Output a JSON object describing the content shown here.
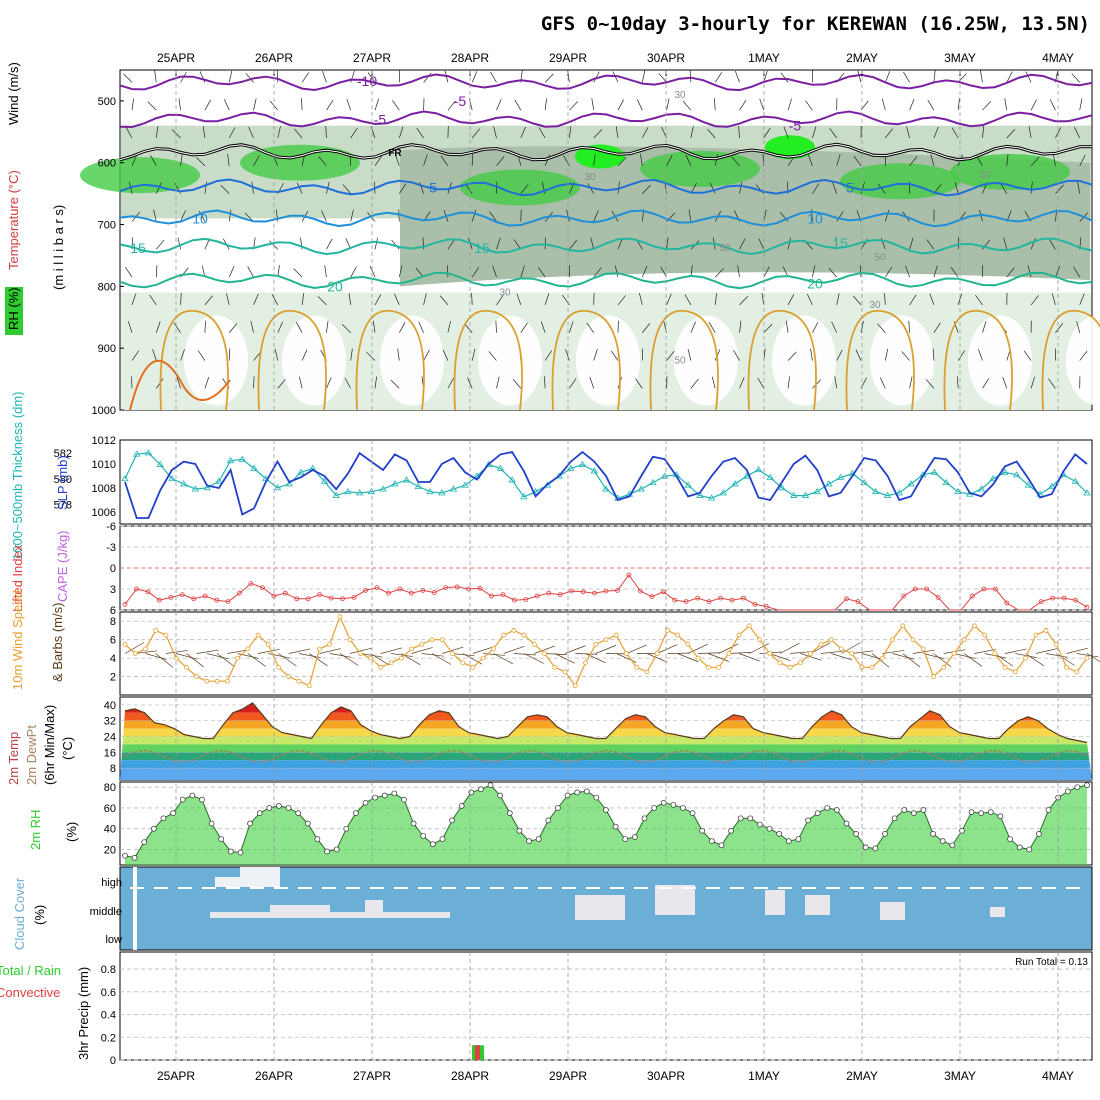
{
  "title": "GFS 0~10day 3-hourly for KEREWAN (16.25W, 13.5N)",
  "colors": {
    "slp": "#1f3fcc",
    "thickness": "#20b5b5",
    "lifted": "#e04040",
    "wind": "#e8a030",
    "rh": "#2ecc2e",
    "cloud": "#6baed6",
    "frz": "#000000",
    "t_cold": "#7a1fa2",
    "t_mid": "#1e6fd9",
    "t_warm": "#22b5a0"
  },
  "chart_data": {
    "type": "meteogram",
    "x_dates": [
      "25APR",
      "26APR",
      "27APR",
      "28APR",
      "29APR",
      "30APR",
      "1MAY",
      "2MAY",
      "3MAY",
      "4MAY"
    ],
    "upper": {
      "ylabels": [
        "RH (%)",
        "Temperature (°C)",
        "Wind (m/s)",
        "(m i l l i b a r s)"
      ],
      "yticks": [
        "500",
        "600",
        "700",
        "800",
        "900",
        "1000"
      ],
      "temp_contour_labels": [
        "-10",
        "-5",
        "-5",
        "-5",
        "5",
        "5",
        "10",
        "10",
        "15",
        "15",
        "15",
        "20",
        "20"
      ],
      "freezing_label": "FR",
      "rh_labels": [
        "30",
        "50",
        "30",
        "50",
        "30",
        "50",
        "30",
        "30"
      ]
    },
    "slp_panel": {
      "ylabels": [
        "1000~500mb Thickness (dm)",
        "SLP (mb)"
      ],
      "left_ticks": [
        "582",
        "580",
        "578"
      ],
      "right_ticks": [
        "1012",
        "1010",
        "1008",
        "1006"
      ],
      "slp": [
        1008.5,
        1005.5,
        1005.5,
        1007.8,
        1009.5,
        1010.2,
        1010.0,
        1008.2,
        1008.0,
        1009.5,
        1005.8,
        1006.3,
        1008.5,
        1010.2,
        1008.5,
        1008.9,
        1009.5,
        1009.0,
        1007.9,
        1009.2,
        1010.9,
        1010.2,
        1009.5,
        1010.8,
        1010.3,
        1008.5,
        1008.5,
        1010.0,
        1010.5,
        1009.3,
        1008.7,
        1010.0,
        1010.8,
        1011.0,
        1009.4,
        1007.3,
        1008.3,
        1009.0,
        1010.2,
        1011.0,
        1010.2,
        1009.0,
        1007.0,
        1007.3,
        1009.0,
        1010.6,
        1010.4,
        1009.0,
        1007.3,
        1007.6,
        1009.0,
        1010.2,
        1010.5,
        1009.5,
        1007.2,
        1007.0,
        1008.5,
        1010.0,
        1010.7,
        1009.5,
        1007.3,
        1007.6,
        1009.0,
        1010.5,
        1010.3,
        1009.0,
        1007.0,
        1007.3,
        1009.0,
        1010.5,
        1010.4,
        1009.3,
        1007.6,
        1007.3,
        1008.3,
        1009.8,
        1010.2,
        1008.8,
        1007.2,
        1007.5,
        1009.4,
        1010.8,
        1010.0
      ],
      "thickness": [
        580.0,
        581.9,
        582.0,
        581.1,
        580.0,
        579.6,
        579.2,
        579.3,
        579.8,
        581.4,
        581.5,
        580.8,
        580.0,
        579.3,
        579.6,
        580.5,
        580.8,
        579.8,
        578.7,
        579.0,
        578.9,
        579.0,
        579.2,
        579.6,
        579.9,
        579.4,
        579.0,
        578.9,
        579.2,
        579.5,
        580.2,
        581.1,
        580.8,
        579.9,
        578.6,
        579.0,
        579.5,
        580.2,
        580.8,
        581.1,
        580.6,
        579.2,
        578.5,
        578.8,
        579.2,
        579.7,
        580.2,
        580.3,
        579.5,
        578.7,
        578.5,
        578.9,
        579.6,
        580.2,
        580.7,
        580.1,
        579.3,
        578.7,
        578.7,
        579.0,
        579.6,
        580.1,
        580.4,
        579.7,
        579.0,
        578.7,
        578.9,
        579.6,
        580.3,
        580.5,
        579.7,
        579.0,
        578.8,
        579.2,
        580.0,
        580.5,
        580.3,
        579.5,
        578.8,
        579.4,
        580.3,
        579.8,
        578.9
      ]
    },
    "cape_panel": {
      "ylabels": [
        "Lifted Index",
        "CAPE (J/kg)"
      ],
      "yticks": [
        "-6",
        "-3",
        "0",
        "3",
        "6"
      ],
      "lifted_index": [
        5.2,
        3.0,
        3.4,
        4.6,
        4.2,
        3.8,
        4.4,
        4.0,
        4.6,
        4.8,
        3.6,
        2.2,
        2.8,
        4.0,
        3.6,
        4.4,
        4.4,
        3.8,
        4.3,
        4.4,
        4.2,
        3.2,
        2.8,
        3.6,
        3.0,
        3.6,
        3.2,
        3.5,
        2.8,
        2.7,
        3.0,
        2.9,
        4.0,
        3.8,
        4.6,
        4.5,
        4.0,
        3.6,
        3.8,
        3.3,
        3.4,
        3.6,
        3.3,
        3.2,
        1.0,
        3.3,
        4.1,
        3.4,
        4.6,
        4.8,
        4.3,
        4.8,
        4.3,
        4.6,
        4.3,
        5.2,
        5.5,
        6.0,
        6.0,
        6.0,
        6.0,
        6.0,
        6.0,
        4.4,
        4.8,
        6.0,
        6.0,
        6.0,
        4.0,
        3.0,
        3.0,
        4.2,
        6.0,
        6.0,
        4.0,
        3.0,
        3.0,
        5.0,
        6.0,
        6.0,
        4.8,
        4.3,
        4.3,
        4.6,
        5.6
      ]
    },
    "wind_panel": {
      "ylabels": [
        "10m Wind Speed",
        "& Barbs (m/s)"
      ],
      "yticks": [
        "8",
        "6",
        "4",
        "2"
      ],
      "speed": [
        5.5,
        4.5,
        5.0,
        7.0,
        6.5,
        4.0,
        3.0,
        2.0,
        1.5,
        1.5,
        1.5,
        4.0,
        5.0,
        6.5,
        5.5,
        3.0,
        2.0,
        1.5,
        1.0,
        5.0,
        5.5,
        8.5,
        6.0,
        4.5,
        4.0,
        3.0,
        3.5,
        4.0,
        5.0,
        5.5,
        6.0,
        6.0,
        4.5,
        3.5,
        3.0,
        4.0,
        5.0,
        6.5,
        7.0,
        6.5,
        5.5,
        4.5,
        3.0,
        2.5,
        1.0,
        3.5,
        5.5,
        6.0,
        6.5,
        4.5,
        3.0,
        2.5,
        4.5,
        7.0,
        6.5,
        5.5,
        4.0,
        3.0,
        3.0,
        4.5,
        6.5,
        7.5,
        6.0,
        4.5,
        3.5,
        3.0,
        3.5,
        4.5,
        5.5,
        6.0,
        5.0,
        4.5,
        3.0,
        3.0,
        4.0,
        6.0,
        7.5,
        6.0,
        5.0,
        2.0,
        3.0,
        4.5,
        6.0,
        7.5,
        6.5,
        4.5,
        3.0,
        2.5,
        4.0,
        6.5,
        7.0,
        5.5,
        3.0,
        2.5,
        4.0
      ]
    },
    "temp_panel": {
      "ylabels": [
        "2m Temp",
        "2m DewPt",
        "(6hr Min/Max)",
        "(°C)"
      ],
      "yticks": [
        "40",
        "32",
        "24",
        "16",
        "8"
      ],
      "temp": [
        37,
        38,
        36,
        31,
        30,
        28,
        25,
        24,
        23,
        23,
        30,
        36,
        38,
        41,
        35,
        29,
        26,
        25,
        24,
        23,
        30,
        36,
        39,
        37,
        30,
        27,
        25,
        24,
        23,
        24,
        30,
        35,
        37,
        36,
        29,
        26,
        25,
        24,
        23,
        24,
        29,
        34,
        35,
        34,
        29,
        26,
        25,
        24,
        23,
        23,
        28,
        33,
        35,
        34,
        29,
        26,
        25,
        24,
        23,
        23,
        28,
        32,
        35,
        34,
        28,
        26,
        25,
        24,
        23,
        23,
        29,
        34,
        37,
        35,
        29,
        26,
        25,
        24,
        23,
        23,
        29,
        33,
        37,
        35,
        29,
        26,
        25,
        24,
        23,
        23,
        28,
        32,
        34,
        32,
        28,
        25,
        23,
        22,
        21
      ]
    },
    "rh_panel": {
      "ylabels": [
        "2m RH",
        "(%)"
      ],
      "yticks": [
        "80",
        "60",
        "40",
        "20"
      ],
      "rh": [
        14,
        12,
        27,
        40,
        50,
        55,
        68,
        72,
        68,
        45,
        30,
        18,
        17,
        45,
        55,
        60,
        62,
        60,
        55,
        45,
        30,
        18,
        20,
        40,
        55,
        65,
        70,
        72,
        74,
        68,
        45,
        33,
        25,
        30,
        48,
        62,
        75,
        78,
        82,
        72,
        55,
        38,
        28,
        30,
        48,
        60,
        72,
        75,
        76,
        70,
        58,
        42,
        30,
        32,
        50,
        60,
        65,
        63,
        60,
        55,
        38,
        28,
        24,
        38,
        50,
        50,
        44,
        40,
        35,
        28,
        30,
        48,
        55,
        60,
        58,
        45,
        35,
        22,
        21,
        35,
        50,
        58,
        55,
        58,
        35,
        28,
        24,
        38,
        56,
        55,
        56,
        52,
        30,
        22,
        20,
        35,
        58,
        70,
        76,
        80,
        82
      ]
    },
    "cloud_panel": {
      "ylabels": [
        "Cloud Cover",
        "(%)"
      ],
      "ylevels": [
        "high",
        "middle",
        "low"
      ]
    },
    "precip_panel": {
      "ylabels": [
        "Total / Rain",
        "Convective",
        "3hr Precip (mm)"
      ],
      "yticks": [
        "0.8",
        "0.6",
        "0.4",
        "0.2",
        "0"
      ],
      "run_total": "Run Total = 0.13",
      "precip": [
        {
          "date": "28APR",
          "total": 0.13,
          "convective": 0.05
        }
      ]
    }
  }
}
